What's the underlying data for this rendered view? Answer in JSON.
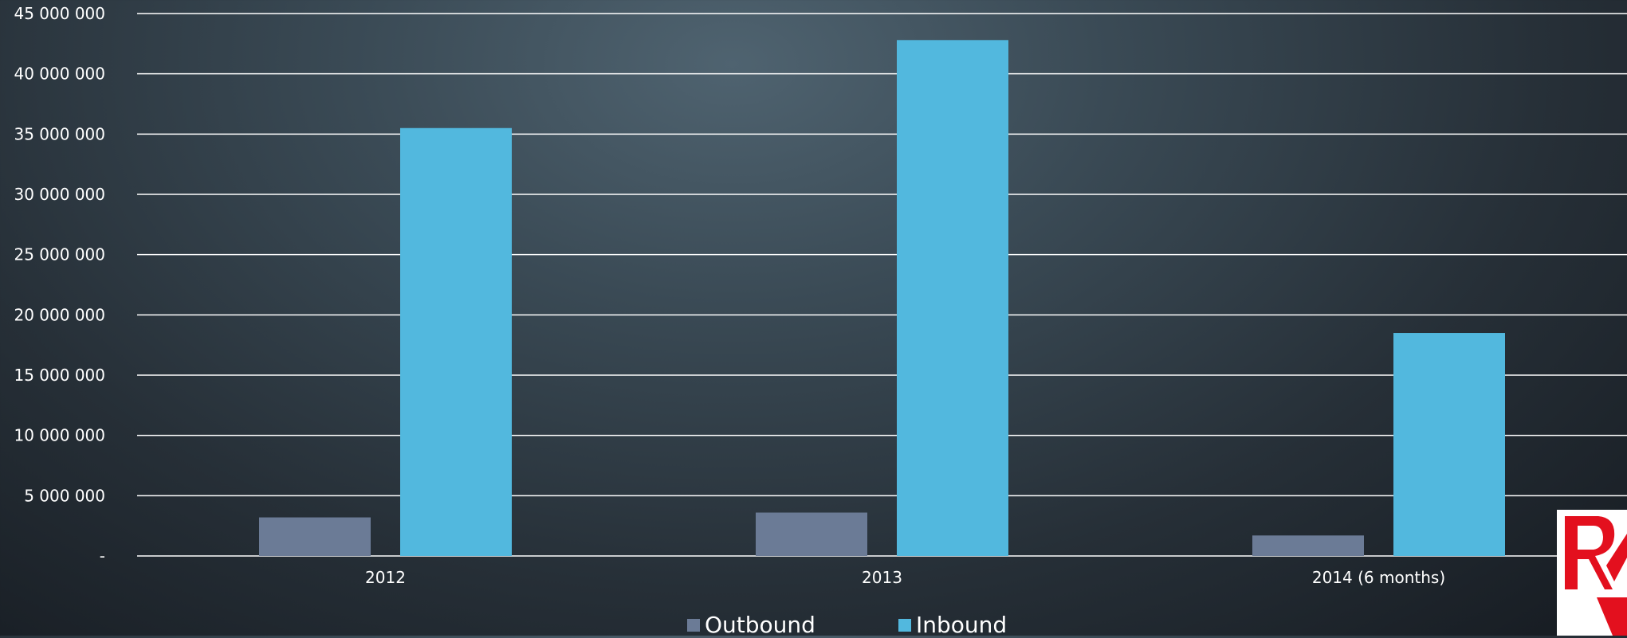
{
  "chart_data": {
    "type": "bar",
    "categories": [
      "2012",
      "2013",
      "2014 (6 months)"
    ],
    "series": [
      {
        "name": "Outbound",
        "values": [
          3200000,
          3600000,
          1700000
        ],
        "color": "#6b7b96"
      },
      {
        "name": "Inbound",
        "values": [
          35500000,
          42800000,
          18500000
        ],
        "color": "#52b8de"
      }
    ],
    "ylim": [
      0,
      45000000
    ],
    "yticks": [
      "-",
      "5 000 000",
      "10 000 000",
      "15 000 000",
      "20 000 000",
      "25 000 000",
      "30 000 000",
      "35 000 000",
      "40 000 000",
      "45 000 000"
    ],
    "grid": true,
    "legend_position": "bottom"
  },
  "logo": {
    "name": "red-brand-logo-icon",
    "color": "#e3101e"
  }
}
